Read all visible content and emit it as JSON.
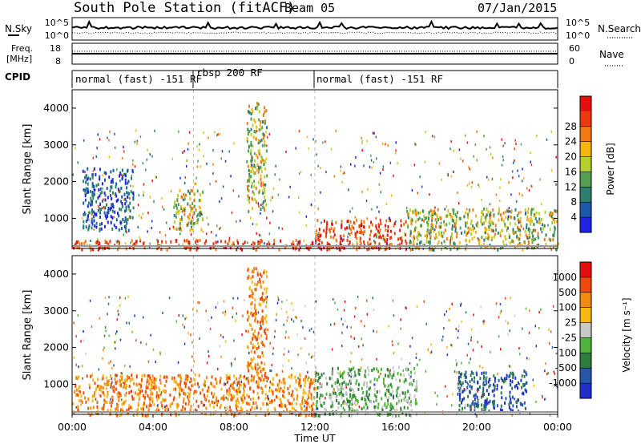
{
  "title": {
    "station": "South Pole Station (fitACF)",
    "beam": "Beam 05",
    "date": "07/Jan/2015"
  },
  "time_axis": {
    "label": "Time UT",
    "ticks": [
      "00:00",
      "04:00",
      "08:00",
      "12:00",
      "16:00",
      "20:00",
      "00:00"
    ],
    "range_hours": [
      0,
      24
    ]
  },
  "nsky_panel": {
    "left_label": "N.Sky",
    "left_ticks": [
      "10^5",
      "10^0"
    ],
    "right_label": "N.Search",
    "right_ticks": [
      "10^5",
      "10^0"
    ]
  },
  "freq_panel": {
    "left_label_1": "Freq.",
    "left_label_2": "[MHz]",
    "left_ticks": [
      "18",
      "8"
    ],
    "right_label": "Nave",
    "right_ticks": [
      "60",
      "0"
    ]
  },
  "cpid_panel": {
    "label": "CPID",
    "segments": [
      {
        "start_hour": 0,
        "end_hour": 6,
        "text": "normal (fast) -151 RF"
      },
      {
        "start_hour": 6,
        "end_hour": 12,
        "text": "rbsp 200 RF"
      },
      {
        "start_hour": 12,
        "end_hour": 24,
        "text": "normal (fast) -151 RF"
      }
    ]
  },
  "chart_data": [
    {
      "type": "heatmap",
      "name": "power",
      "xlabel": "Time UT",
      "ylabel": "Slant Range [km]",
      "ylim": [
        180,
        4500
      ],
      "yticks": [
        "1000",
        "2000",
        "3000",
        "4000"
      ],
      "colorbar_label": "Power [dB]",
      "colorbar_ticks": [
        "4",
        "8",
        "12",
        "16",
        "20",
        "24",
        "28"
      ],
      "colorscale": [
        "#1e24e0",
        "#1a5aa8",
        "#2e7f6e",
        "#55a050",
        "#b5cf2c",
        "#f5b40e",
        "#f07a14",
        "#ea3a0e",
        "#e60f0f"
      ],
      "regions": [
        {
          "t": [
            0.0,
            12.0
          ],
          "r": [
            180,
            450
          ],
          "level": "high"
        },
        {
          "t": [
            12.0,
            16.5
          ],
          "r": [
            180,
            1000
          ],
          "level": "high"
        },
        {
          "t": [
            16.5,
            24.0
          ],
          "r": [
            180,
            1300
          ],
          "level": "mid"
        },
        {
          "t": [
            0.5,
            3.0
          ],
          "r": [
            700,
            2400
          ],
          "level": "low"
        },
        {
          "t": [
            5.0,
            6.5
          ],
          "r": [
            700,
            1800
          ],
          "level": "mid"
        },
        {
          "t": [
            8.6,
            9.6
          ],
          "r": [
            1200,
            4200
          ],
          "level": "mid"
        }
      ]
    },
    {
      "type": "heatmap",
      "name": "velocity",
      "xlabel": "Time UT",
      "ylabel": "Slant Range [km]",
      "ylim": [
        180,
        4500
      ],
      "yticks": [
        "1000",
        "2000",
        "3000",
        "4000"
      ],
      "colorbar_label": "Velocity [m s⁻¹]",
      "colorbar_ticks": [
        "1000",
        "500",
        "100",
        "25",
        "-25",
        "-100",
        "-500",
        "-1000"
      ],
      "colorscale": [
        "#1f2fc8",
        "#2857a8",
        "#2f7d3c",
        "#4fb43a",
        "#c8c8c8",
        "#f7b812",
        "#f08a12",
        "#ef4a0e",
        "#e60f0f"
      ],
      "regions": [
        {
          "t": [
            0.0,
            12.0
          ],
          "r": [
            180,
            1300
          ],
          "level": "orange"
        },
        {
          "t": [
            12.0,
            17.0
          ],
          "r": [
            180,
            1500
          ],
          "level": "green"
        },
        {
          "t": [
            19.0,
            22.5
          ],
          "r": [
            300,
            1400
          ],
          "level": "blue"
        },
        {
          "t": [
            8.6,
            9.6
          ],
          "r": [
            1200,
            4200
          ],
          "level": "orange"
        }
      ]
    }
  ]
}
